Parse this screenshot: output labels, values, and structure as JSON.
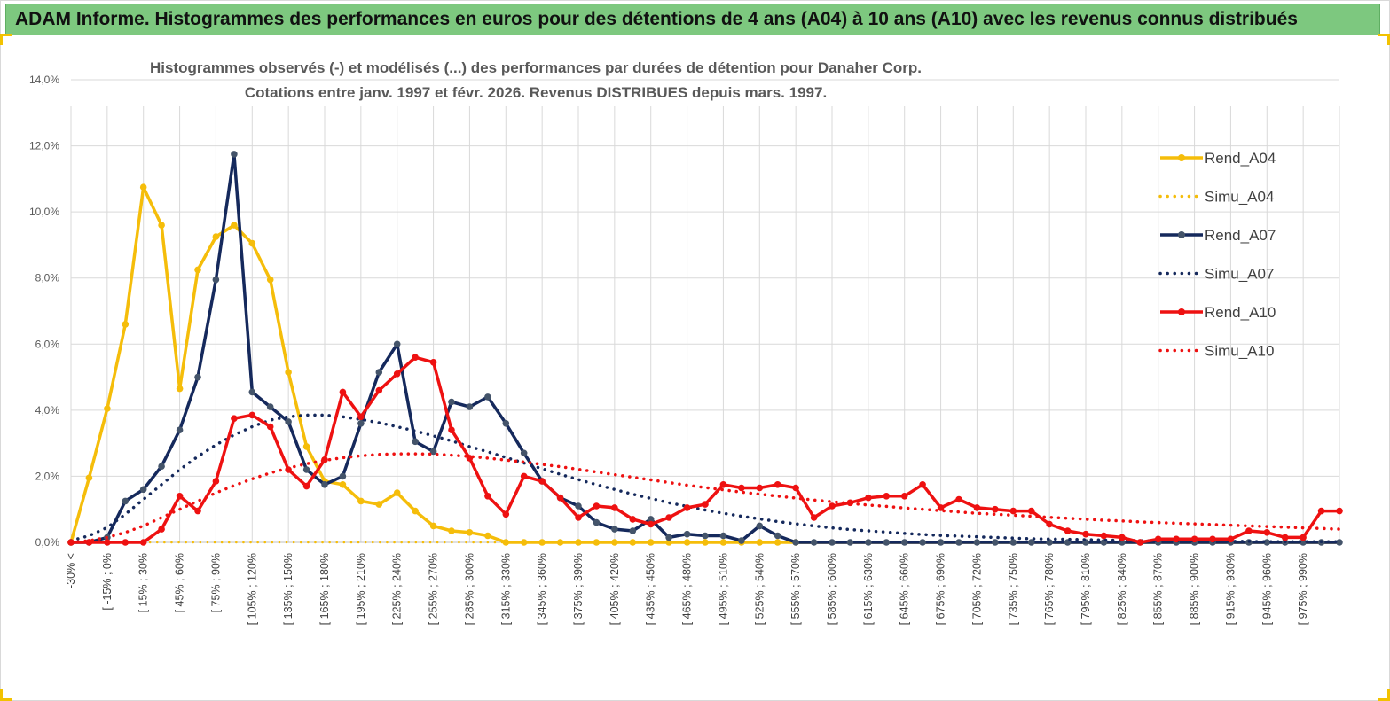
{
  "header": {
    "title": "ADAM Informe. Histogrammes des performances en euros pour des détentions de 4 ans (A04) à 10 ans (A10) avec les revenus connus distribués"
  },
  "chart_data": {
    "type": "line",
    "title": "Histogrammes observés (-)  et modélisés (...) des performances par durées de détention pour Danaher Corp.",
    "subtitle": "Cotations entre janv. 1997 et févr. 2026. Revenus DISTRIBUES depuis mars. 1997.",
    "xlabel": "",
    "ylabel": "",
    "ylim": [
      0,
      14
    ],
    "y_ticks": [
      "0,0%",
      "2,0%",
      "4,0%",
      "6,0%",
      "8,0%",
      "10,0%",
      "12,0%",
      "14,0%"
    ],
    "x_tick_labels": [
      "-30% <",
      "[ -15% ; 0%",
      "[ 15% ; 30%",
      "[ 45% ; 60%",
      "[ 75% ; 90%",
      "[ 105% ; 120%",
      "[ 135% ; 150%",
      "[ 165% ; 180%",
      "[ 195% ; 210%",
      "[ 225% ; 240%",
      "[ 255% ; 270%",
      "[ 285% ; 300%",
      "[ 315% ; 330%",
      "[ 345% ; 360%",
      "[ 375% ; 390%",
      "[ 405% ; 420%",
      "[ 435% ; 450%",
      "[ 465% ; 480%",
      "[ 495% ; 510%",
      "[ 525% ; 540%",
      "[ 555% ; 570%",
      "[ 585% ; 600%",
      "[ 615% ; 630%",
      "[ 645% ; 660%",
      "[ 675% ; 690%",
      "[ 705% ; 720%",
      "[ 735% ; 750%",
      "[ 765% ; 780%",
      "[ 795% ; 810%",
      "[ 825% ; 840%",
      "[ 855% ; 870%",
      "[ 885% ; 900%",
      "[ 915% ; 930%",
      "[ 945% ; 960%",
      "[ 975% ; 990%"
    ],
    "n_bins": 71,
    "series": [
      {
        "name": "Rend_A04",
        "style": "solid",
        "color": "#f5bd0a",
        "values": [
          0.0,
          1.95,
          4.05,
          6.6,
          10.75,
          9.6,
          4.65,
          8.25,
          9.25,
          9.6,
          9.05,
          7.95,
          5.15,
          2.9,
          1.85,
          1.75,
          1.25,
          1.15,
          1.5,
          0.95,
          0.5,
          0.35,
          0.3,
          0.2,
          0.0,
          0.0,
          0.0,
          0.0,
          0.0,
          0.0,
          0.0,
          0.0,
          0.0,
          0.0,
          0.0,
          0.0,
          0.0,
          0.0,
          0.0,
          0.0,
          0.0,
          0.0,
          0.0,
          0.0,
          0.0,
          0.0,
          0.0,
          0.0,
          0.0,
          0.0,
          0.0,
          0.0,
          0.0,
          0.0,
          0.0,
          0.0,
          0.0,
          0.0,
          0.0,
          0.0,
          0.0,
          0.0,
          0.0,
          0.0,
          0.0,
          0.0,
          0.0,
          0.0,
          0.0,
          0.0,
          0.0
        ]
      },
      {
        "name": "Simu_A04",
        "style": "dotted",
        "color": "#f5bd0a",
        "values": [
          0.0,
          0.0,
          0.0,
          0.0,
          0.0,
          0.0,
          0.0,
          0.0,
          0.0,
          0.0,
          0.0,
          0.0,
          0.0,
          0.0,
          0.0,
          0.0,
          0.0,
          0.0,
          0.0,
          0.0,
          0.0,
          0.0,
          0.0,
          0.0,
          0.0,
          0.0,
          0.0,
          0.0,
          0.0,
          0.0,
          0.0,
          0.0,
          0.0,
          0.0,
          0.0,
          0.0,
          0.0,
          0.0,
          0.0,
          0.0,
          0.0,
          0.0,
          0.0,
          0.0,
          0.0,
          0.0,
          0.0,
          0.0,
          0.0,
          0.0,
          0.0,
          0.0,
          0.0,
          0.0,
          0.0,
          0.0,
          0.0,
          0.0,
          0.0,
          0.0,
          0.0,
          0.0,
          0.0,
          0.0,
          0.0,
          0.0,
          0.0,
          0.0,
          0.0,
          0.0,
          0.0
        ]
      },
      {
        "name": "Rend_A07",
        "style": "solid",
        "color": "#15295c",
        "values": [
          0.0,
          0.0,
          0.15,
          1.25,
          1.6,
          2.3,
          3.4,
          5.0,
          7.95,
          11.75,
          4.55,
          4.1,
          3.65,
          2.2,
          1.75,
          2.0,
          3.6,
          5.15,
          6.0,
          3.05,
          2.75,
          4.25,
          4.1,
          4.4,
          3.6,
          2.7,
          1.85,
          1.35,
          1.1,
          0.6,
          0.4,
          0.35,
          0.7,
          0.15,
          0.25,
          0.2,
          0.2,
          0.05,
          0.5,
          0.2,
          0.0,
          0.0,
          0.0,
          0.0,
          0.0,
          0.0,
          0.0,
          0.0,
          0.0,
          0.0,
          0.0,
          0.0,
          0.0,
          0.0,
          0.0,
          0.0,
          0.0,
          0.0,
          0.0,
          0.0,
          0.0,
          0.0,
          0.0,
          0.0,
          0.0,
          0.0,
          0.0,
          0.0,
          0.0,
          0.0,
          0.0
        ]
      },
      {
        "name": "Simu_A07",
        "style": "dotted",
        "color": "#15295c",
        "values": [
          0.05,
          0.2,
          0.45,
          0.85,
          1.3,
          1.75,
          2.2,
          2.6,
          2.95,
          3.25,
          3.5,
          3.7,
          3.8,
          3.85,
          3.85,
          3.8,
          3.72,
          3.62,
          3.5,
          3.37,
          3.22,
          3.07,
          2.9,
          2.74,
          2.57,
          2.4,
          2.23,
          2.06,
          1.9,
          1.75,
          1.6,
          1.46,
          1.33,
          1.2,
          1.09,
          0.98,
          0.88,
          0.79,
          0.71,
          0.63,
          0.56,
          0.5,
          0.44,
          0.39,
          0.35,
          0.31,
          0.27,
          0.24,
          0.21,
          0.19,
          0.17,
          0.15,
          0.13,
          0.11,
          0.1,
          0.09,
          0.08,
          0.07,
          0.06,
          0.05,
          0.05,
          0.04,
          0.04,
          0.03,
          0.03,
          0.03,
          0.02,
          0.02,
          0.02,
          0.02,
          0.02
        ]
      },
      {
        "name": "Rend_A10",
        "style": "solid",
        "color": "#ee1111",
        "values": [
          0.0,
          0.0,
          0.0,
          0.0,
          0.0,
          0.4,
          1.4,
          0.95,
          1.85,
          3.75,
          3.85,
          3.5,
          2.2,
          1.7,
          2.5,
          4.55,
          3.8,
          4.6,
          5.1,
          5.6,
          5.45,
          3.4,
          2.55,
          1.4,
          0.85,
          2.0,
          1.85,
          1.35,
          0.75,
          1.1,
          1.05,
          0.7,
          0.55,
          0.75,
          1.05,
          1.15,
          1.75,
          1.65,
          1.65,
          1.75,
          1.65,
          0.75,
          1.1,
          1.2,
          1.35,
          1.4,
          1.4,
          1.75,
          1.05,
          1.3,
          1.05,
          1.0,
          0.95,
          0.95,
          0.55,
          0.35,
          0.25,
          0.2,
          0.15,
          0.0,
          0.1,
          0.1,
          0.1,
          0.1,
          0.1,
          0.35,
          0.3,
          0.15,
          0.15,
          0.95,
          0.95
        ]
      },
      {
        "name": "Simu_A10",
        "style": "dotted",
        "color": "#ee1111",
        "values": [
          0.0,
          0.05,
          0.15,
          0.3,
          0.5,
          0.75,
          1.0,
          1.25,
          1.5,
          1.72,
          1.92,
          2.1,
          2.25,
          2.38,
          2.48,
          2.56,
          2.62,
          2.66,
          2.68,
          2.68,
          2.67,
          2.64,
          2.6,
          2.55,
          2.49,
          2.43,
          2.36,
          2.29,
          2.21,
          2.13,
          2.05,
          1.97,
          1.89,
          1.81,
          1.73,
          1.66,
          1.59,
          1.52,
          1.46,
          1.4,
          1.34,
          1.28,
          1.23,
          1.18,
          1.13,
          1.09,
          1.04,
          1.0,
          0.96,
          0.92,
          0.88,
          0.85,
          0.82,
          0.79,
          0.76,
          0.73,
          0.7,
          0.67,
          0.65,
          0.62,
          0.6,
          0.58,
          0.56,
          0.54,
          0.52,
          0.5,
          0.48,
          0.46,
          0.44,
          0.42,
          0.4
        ]
      }
    ],
    "legend_position": "right"
  }
}
